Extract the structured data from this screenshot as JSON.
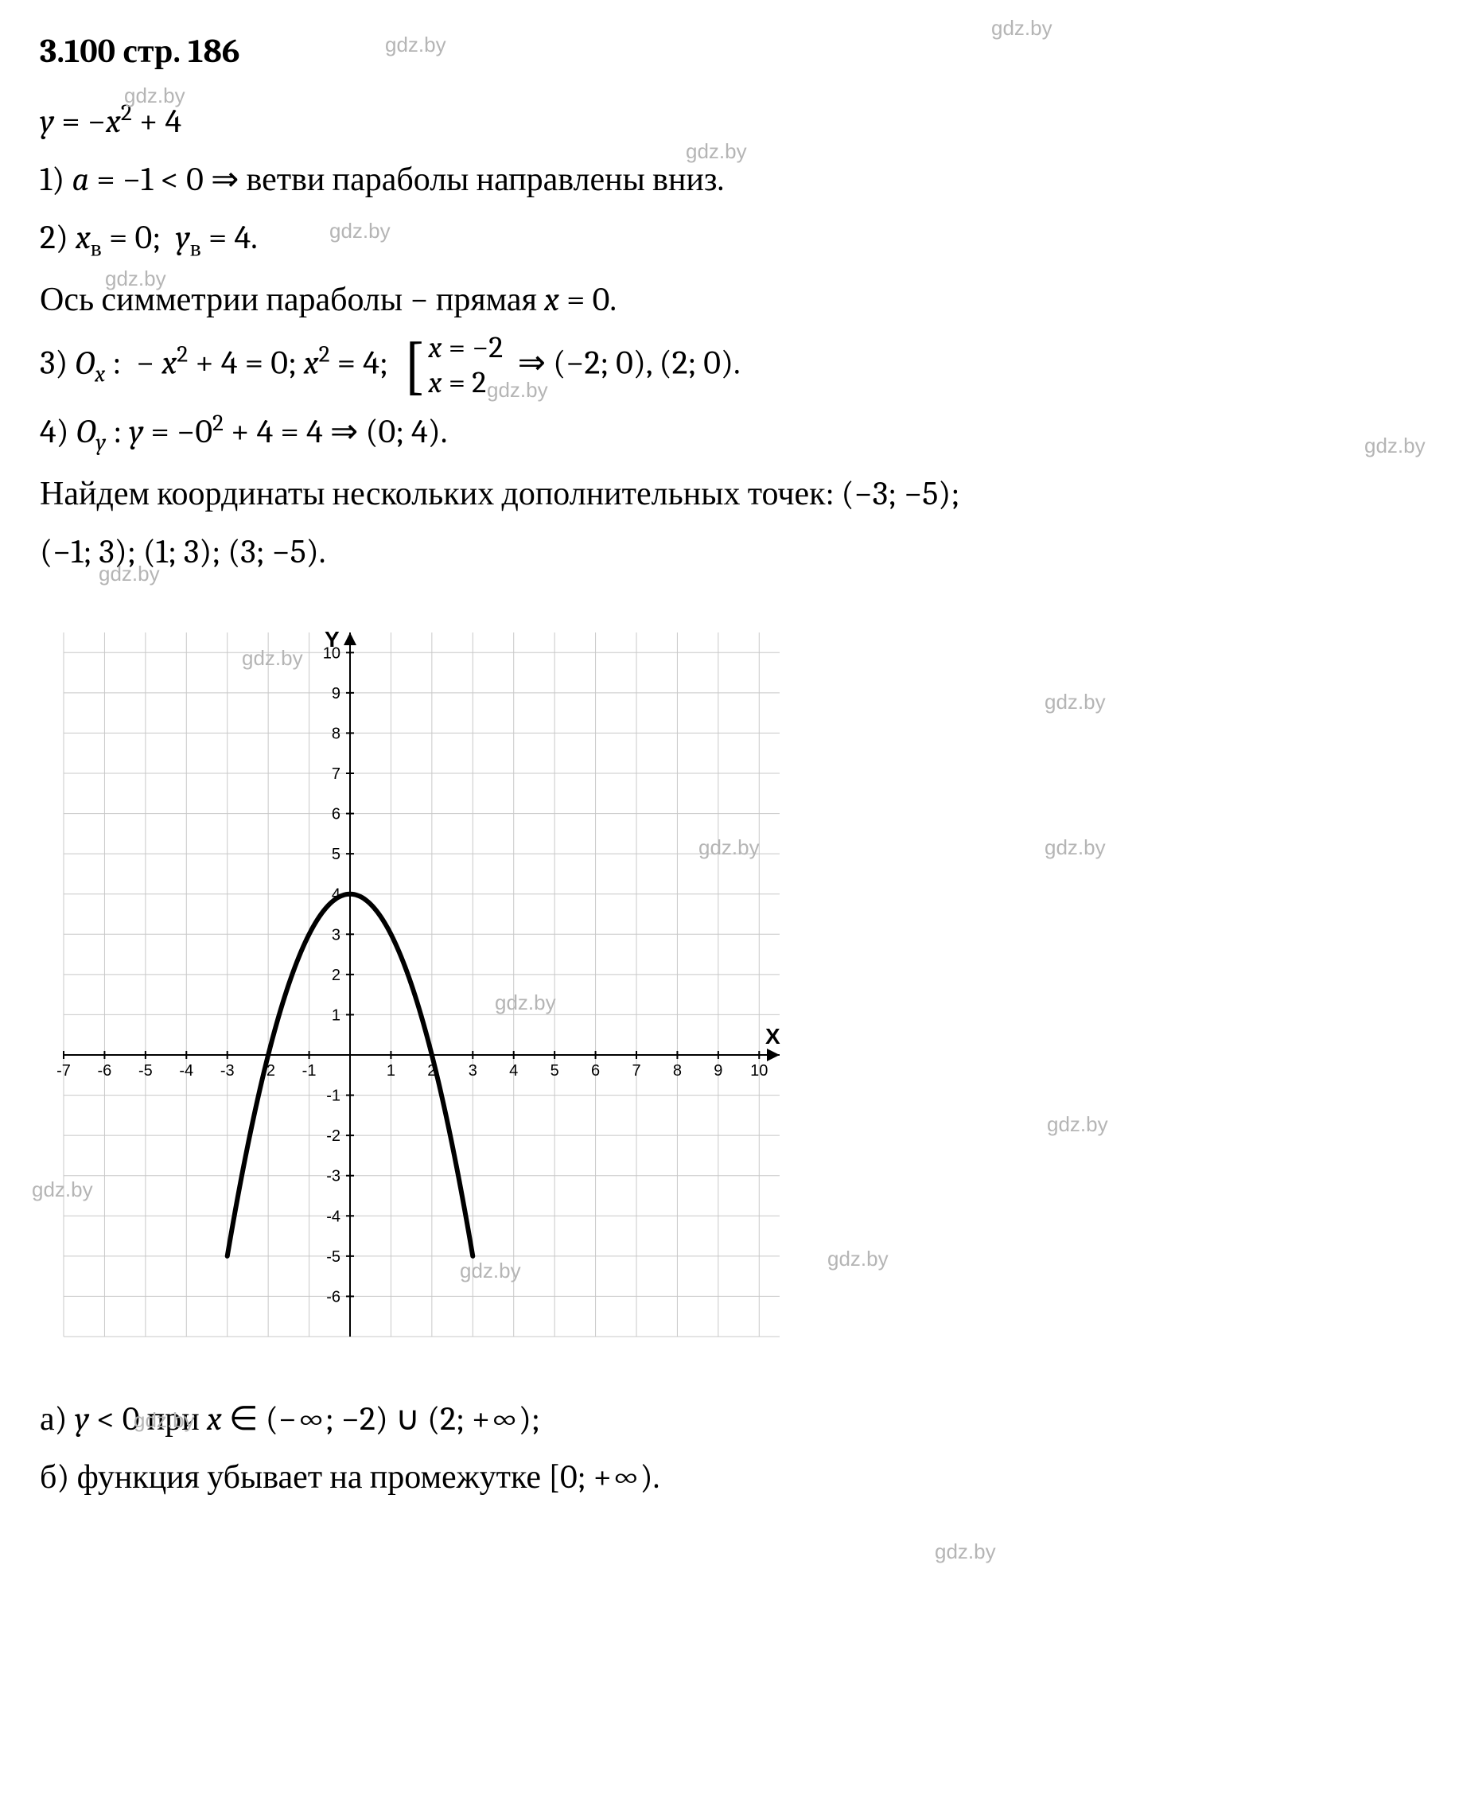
{
  "title": "3.100 стр. 186",
  "watermark": "gdz.by",
  "equation": "y = −x² + 4",
  "step1": "1) a = −1 < 0 ⇒ ветви параболы направлены вниз.",
  "step2": "2) xᵥ = 0;  yᵥ = 4.",
  "symm_line": "Ось симметрии параболы − прямая x = 0.",
  "step3_prefix": "3) Oₓ : − x² + 4 = 0; x² = 4; ",
  "step3_row1": "x = −2",
  "step3_row2": "x = 2",
  "step3_suffix": " ⇒ (−2; 0), (2; 0).",
  "step4": "4) Oᵧ : y = −0² + 4 = 4 ⇒ (0; 4).",
  "extra_pts_1": "Найдем координаты нескольких дополнительных точек: (−3; −5);",
  "extra_pts_2": "(−1; 3); (1; 3); (3; −5).",
  "ans_a": "а) y < 0 при x ∈ (−∞; −2) ∪ (2; +∞);",
  "ans_b": "б) функция убывает на промежутке [0; +∞).",
  "chart": {
    "type": "line",
    "function": "y = -x^2 + 4",
    "xlim": [
      -7,
      10.5
    ],
    "ylim": [
      -7,
      10.5
    ],
    "xtick_step": 1,
    "ytick_step": 1,
    "x_ticks": [
      -7,
      -6,
      -5,
      -4,
      -3,
      -2,
      -1,
      1,
      2,
      3,
      4,
      5,
      6,
      7,
      8,
      9,
      10
    ],
    "y_ticks": [
      -6,
      -5,
      -4,
      -3,
      -2,
      -1,
      1,
      2,
      3,
      4,
      5,
      6,
      7,
      8,
      9,
      10
    ],
    "x_label": "X",
    "y_label": "Y",
    "axis_color": "#000000",
    "grid_color": "#c8c8c8",
    "background_color": "#ffffff",
    "curve_color": "#000000",
    "curve_width": 6,
    "tick_fontsize": 20,
    "label_fontsize": 28,
    "curve_points_x_range": [
      -3,
      3
    ],
    "sample_points": [
      [
        -3,
        -5
      ],
      [
        -2.5,
        -2.25
      ],
      [
        -2,
        0
      ],
      [
        -1.5,
        1.75
      ],
      [
        -1,
        3
      ],
      [
        -0.5,
        3.75
      ],
      [
        0,
        4
      ],
      [
        0.5,
        3.75
      ],
      [
        1,
        3
      ],
      [
        1.5,
        1.75
      ],
      [
        2,
        0
      ],
      [
        2.5,
        -2.25
      ],
      [
        3,
        -5
      ]
    ]
  },
  "wm_positions": [
    [
      484,
      41
    ],
    [
      1246,
      20
    ],
    [
      156,
      105
    ],
    [
      862,
      175
    ],
    [
      414,
      275
    ],
    [
      132,
      335
    ],
    [
      612,
      475
    ],
    [
      1715,
      545
    ],
    [
      124,
      706
    ],
    [
      304,
      812
    ],
    [
      1313,
      867
    ],
    [
      878,
      1050
    ],
    [
      1313,
      1050
    ],
    [
      622,
      1245
    ],
    [
      1316,
      1398
    ],
    [
      40,
      1480
    ],
    [
      578,
      1582
    ],
    [
      1040,
      1567
    ],
    [
      168,
      1770
    ],
    [
      1175,
      1935
    ]
  ]
}
